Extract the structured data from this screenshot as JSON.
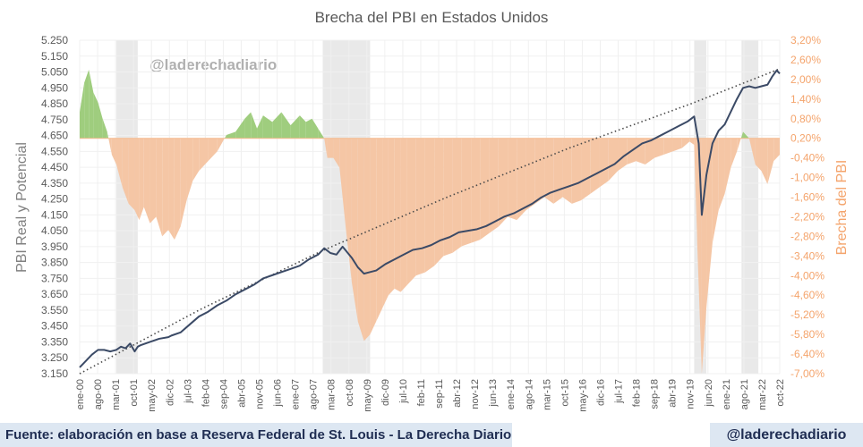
{
  "footer": {
    "source": "Fuente: elaboración en base a Reserva Federal de St. Louis - La Derecha Diario",
    "handle": "@laderechadiario"
  },
  "watermark": "@laderechadiario",
  "colors": {
    "line": "#3b4a66",
    "positive_fill": "#9fcd7e",
    "negative_fill": "#f5c6a5",
    "trend": "#4a4a4a",
    "recession": "#e9e9e9",
    "right_axis": "#f4a46c"
  },
  "chart_data": {
    "type": "line",
    "title": "Brecha del PBI en Estados Unidos",
    "ylabel_left": "PBI Real y Potencial",
    "ylabel_right": "Brecha del PBI",
    "x_range": [
      2000.0,
      2022.9
    ],
    "y_left_range": [
      3150,
      5250
    ],
    "y_right_range": [
      -7.0,
      3.2
    ],
    "y_left_ticks": [
      "3.150",
      "3.250",
      "3.350",
      "3.450",
      "3.550",
      "3.650",
      "3.750",
      "3.850",
      "3.950",
      "4.050",
      "4.150",
      "4.250",
      "4.350",
      "4.450",
      "4.550",
      "4.650",
      "4.750",
      "4.850",
      "4.950",
      "5.050",
      "5.150",
      "5.250"
    ],
    "y_right_ticks": [
      "-7,00%",
      "-6,40%",
      "-5,80%",
      "-5,20%",
      "-4,60%",
      "-4,00%",
      "-3,40%",
      "-2,80%",
      "-2,20%",
      "-1,60%",
      "-1,00%",
      "-0,40%",
      "0,20%",
      "0,80%",
      "1,40%",
      "2,00%",
      "2,60%",
      "3,20%"
    ],
    "x_ticks": [
      "ene-00",
      "ago-00",
      "mar-01",
      "oct-01",
      "may-02",
      "dic-02",
      "jul-03",
      "feb-04",
      "sep-04",
      "abr-05",
      "nov-05",
      "jun-06",
      "ene-07",
      "ago-07",
      "mar-08",
      "oct-08",
      "may-09",
      "dic-09",
      "jul-10",
      "feb-11",
      "sep-11",
      "abr-12",
      "nov-12",
      "jun-13",
      "ene-14",
      "ago-14",
      "mar-15",
      "oct-15",
      "may-16",
      "dic-16",
      "jul-17",
      "feb-18",
      "sep-18",
      "abr-19",
      "nov-19",
      "jun-20",
      "ene-21",
      "ago-21",
      "mar-22",
      "oct-22"
    ],
    "recessions": [
      [
        2001.2,
        2001.9
      ],
      [
        2007.95,
        2009.5
      ],
      [
        2020.1,
        2020.5
      ],
      [
        2021.65,
        2022.2
      ]
    ],
    "gap_zero": 0.2,
    "series": [
      {
        "name": "PBI Real",
        "points": [
          [
            2000.0,
            3190
          ],
          [
            2000.2,
            3230
          ],
          [
            2000.4,
            3270
          ],
          [
            2000.6,
            3300
          ],
          [
            2000.8,
            3300
          ],
          [
            2001.0,
            3290
          ],
          [
            2001.2,
            3300
          ],
          [
            2001.35,
            3320
          ],
          [
            2001.5,
            3310
          ],
          [
            2001.65,
            3340
          ],
          [
            2001.8,
            3290
          ],
          [
            2001.9,
            3320
          ],
          [
            2002.0,
            3330
          ],
          [
            2002.3,
            3350
          ],
          [
            2002.6,
            3370
          ],
          [
            2002.9,
            3380
          ],
          [
            2003.0,
            3390
          ],
          [
            2003.3,
            3410
          ],
          [
            2003.6,
            3460
          ],
          [
            2003.9,
            3510
          ],
          [
            2004.2,
            3540
          ],
          [
            2004.5,
            3580
          ],
          [
            2004.8,
            3610
          ],
          [
            2005.1,
            3650
          ],
          [
            2005.4,
            3680
          ],
          [
            2005.7,
            3710
          ],
          [
            2006.0,
            3750
          ],
          [
            2006.3,
            3770
          ],
          [
            2006.6,
            3790
          ],
          [
            2006.9,
            3810
          ],
          [
            2007.2,
            3830
          ],
          [
            2007.5,
            3870
          ],
          [
            2007.8,
            3900
          ],
          [
            2008.0,
            3940
          ],
          [
            2008.2,
            3910
          ],
          [
            2008.4,
            3900
          ],
          [
            2008.6,
            3950
          ],
          [
            2008.9,
            3880
          ],
          [
            2009.1,
            3820
          ],
          [
            2009.3,
            3780
          ],
          [
            2009.5,
            3790
          ],
          [
            2009.7,
            3800
          ],
          [
            2010.0,
            3840
          ],
          [
            2010.3,
            3870
          ],
          [
            2010.6,
            3900
          ],
          [
            2010.9,
            3930
          ],
          [
            2011.2,
            3940
          ],
          [
            2011.5,
            3960
          ],
          [
            2011.8,
            3990
          ],
          [
            2012.1,
            4010
          ],
          [
            2012.4,
            4040
          ],
          [
            2012.7,
            4050
          ],
          [
            2013.0,
            4060
          ],
          [
            2013.3,
            4080
          ],
          [
            2013.6,
            4110
          ],
          [
            2013.9,
            4140
          ],
          [
            2014.2,
            4160
          ],
          [
            2014.5,
            4190
          ],
          [
            2014.8,
            4220
          ],
          [
            2015.1,
            4260
          ],
          [
            2015.4,
            4290
          ],
          [
            2015.7,
            4310
          ],
          [
            2016.0,
            4330
          ],
          [
            2016.3,
            4350
          ],
          [
            2016.6,
            4380
          ],
          [
            2016.9,
            4410
          ],
          [
            2017.2,
            4440
          ],
          [
            2017.5,
            4470
          ],
          [
            2017.8,
            4520
          ],
          [
            2018.1,
            4560
          ],
          [
            2018.4,
            4600
          ],
          [
            2018.7,
            4620
          ],
          [
            2019.0,
            4650
          ],
          [
            2019.3,
            4680
          ],
          [
            2019.6,
            4710
          ],
          [
            2019.9,
            4740
          ],
          [
            2020.1,
            4770
          ],
          [
            2020.25,
            4600
          ],
          [
            2020.35,
            4150
          ],
          [
            2020.5,
            4400
          ],
          [
            2020.7,
            4600
          ],
          [
            2020.9,
            4680
          ],
          [
            2021.1,
            4720
          ],
          [
            2021.3,
            4800
          ],
          [
            2021.5,
            4880
          ],
          [
            2021.7,
            4950
          ],
          [
            2021.9,
            4960
          ],
          [
            2022.1,
            4950
          ],
          [
            2022.3,
            4960
          ],
          [
            2022.5,
            4970
          ],
          [
            2022.65,
            5020
          ],
          [
            2022.8,
            5060
          ],
          [
            2022.9,
            5040
          ]
        ]
      },
      {
        "name": "PBI Potencial",
        "points": [
          [
            2000.0,
            3150
          ],
          [
            2004.0,
            3560
          ],
          [
            2008.0,
            3930
          ],
          [
            2012.0,
            4260
          ],
          [
            2016.0,
            4570
          ],
          [
            2020.0,
            4850
          ],
          [
            2022.9,
            5070
          ]
        ]
      },
      {
        "name": "Brecha del PBI",
        "points": [
          [
            2000.0,
            1.0
          ],
          [
            2000.15,
            1.9
          ],
          [
            2000.3,
            2.3
          ],
          [
            2000.45,
            1.6
          ],
          [
            2000.6,
            1.3
          ],
          [
            2000.75,
            0.8
          ],
          [
            2000.9,
            0.4
          ],
          [
            2001.05,
            -0.3
          ],
          [
            2001.2,
            -0.6
          ],
          [
            2001.4,
            -1.3
          ],
          [
            2001.6,
            -1.8
          ],
          [
            2001.8,
            -2.0
          ],
          [
            2001.95,
            -2.3
          ],
          [
            2002.1,
            -1.9
          ],
          [
            2002.3,
            -2.4
          ],
          [
            2002.5,
            -2.2
          ],
          [
            2002.7,
            -2.8
          ],
          [
            2002.9,
            -2.6
          ],
          [
            2003.1,
            -2.9
          ],
          [
            2003.3,
            -2.5
          ],
          [
            2003.5,
            -1.7
          ],
          [
            2003.7,
            -1.1
          ],
          [
            2003.9,
            -0.8
          ],
          [
            2004.2,
            -0.5
          ],
          [
            2004.5,
            -0.2
          ],
          [
            2004.8,
            0.3
          ],
          [
            2005.1,
            0.4
          ],
          [
            2005.4,
            0.8
          ],
          [
            2005.6,
            1.0
          ],
          [
            2005.8,
            0.5
          ],
          [
            2006.0,
            0.9
          ],
          [
            2006.3,
            0.7
          ],
          [
            2006.6,
            1.0
          ],
          [
            2006.9,
            0.6
          ],
          [
            2007.2,
            0.9
          ],
          [
            2007.4,
            0.7
          ],
          [
            2007.6,
            0.8
          ],
          [
            2007.8,
            0.5
          ],
          [
            2008.0,
            0.2
          ],
          [
            2008.1,
            -0.4
          ],
          [
            2008.3,
            -0.4
          ],
          [
            2008.5,
            -0.7
          ],
          [
            2008.7,
            -2.5
          ],
          [
            2008.9,
            -4.2
          ],
          [
            2009.1,
            -5.4
          ],
          [
            2009.3,
            -6.0
          ],
          [
            2009.5,
            -5.8
          ],
          [
            2009.7,
            -5.4
          ],
          [
            2009.9,
            -5.0
          ],
          [
            2010.1,
            -4.6
          ],
          [
            2010.3,
            -4.4
          ],
          [
            2010.5,
            -4.5
          ],
          [
            2010.7,
            -4.3
          ],
          [
            2011.0,
            -4.0
          ],
          [
            2011.3,
            -3.9
          ],
          [
            2011.6,
            -3.7
          ],
          [
            2011.9,
            -3.4
          ],
          [
            2012.2,
            -3.3
          ],
          [
            2012.5,
            -3.1
          ],
          [
            2012.8,
            -3.0
          ],
          [
            2013.1,
            -2.9
          ],
          [
            2013.4,
            -2.7
          ],
          [
            2013.7,
            -2.5
          ],
          [
            2014.0,
            -2.2
          ],
          [
            2014.3,
            -2.3
          ],
          [
            2014.6,
            -2.0
          ],
          [
            2014.9,
            -1.8
          ],
          [
            2015.2,
            -1.6
          ],
          [
            2015.5,
            -1.8
          ],
          [
            2015.8,
            -1.6
          ],
          [
            2016.1,
            -1.8
          ],
          [
            2016.4,
            -1.7
          ],
          [
            2016.7,
            -1.5
          ],
          [
            2017.0,
            -1.3
          ],
          [
            2017.3,
            -1.1
          ],
          [
            2017.6,
            -0.8
          ],
          [
            2017.9,
            -0.6
          ],
          [
            2018.2,
            -0.5
          ],
          [
            2018.5,
            -0.6
          ],
          [
            2018.8,
            -0.4
          ],
          [
            2019.1,
            -0.3
          ],
          [
            2019.4,
            -0.2
          ],
          [
            2019.7,
            -0.1
          ],
          [
            2019.95,
            0.1
          ],
          [
            2020.1,
            0.0
          ],
          [
            2020.2,
            -3.0
          ],
          [
            2020.35,
            -7.0
          ],
          [
            2020.5,
            -5.0
          ],
          [
            2020.7,
            -3.0
          ],
          [
            2020.9,
            -2.0
          ],
          [
            2021.1,
            -1.5
          ],
          [
            2021.3,
            -0.7
          ],
          [
            2021.5,
            -0.2
          ],
          [
            2021.7,
            0.4
          ],
          [
            2021.9,
            0.2
          ],
          [
            2022.1,
            -0.6
          ],
          [
            2022.3,
            -0.8
          ],
          [
            2022.5,
            -1.2
          ],
          [
            2022.7,
            -0.5
          ],
          [
            2022.9,
            -0.3
          ]
        ]
      }
    ]
  }
}
